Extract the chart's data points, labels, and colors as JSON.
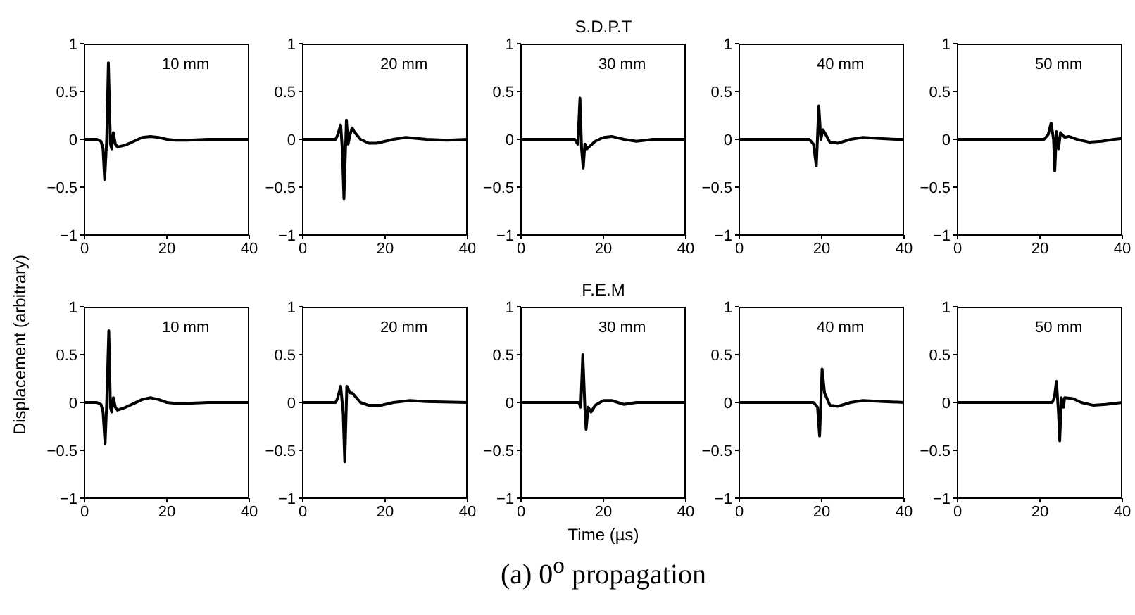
{
  "chart_data": [
    {
      "type": "line",
      "ylabel": "Displacement (arbitrary)",
      "annotations": [
        "10 mm"
      ],
      "color": "#000000",
      "xlim": [
        0,
        40
      ],
      "ylim": [
        -1,
        1
      ],
      "xticks": [
        0,
        20,
        40
      ],
      "yticks": [
        -1,
        -0.5,
        0,
        0.5,
        1
      ],
      "x": [
        0,
        3,
        4,
        4.5,
        4.9,
        5.4,
        5.8,
        6.3,
        6.6,
        7,
        7.5,
        8,
        10,
        12,
        14,
        16,
        18,
        20,
        22,
        25,
        30,
        40
      ],
      "values": [
        0,
        0,
        -0.02,
        -0.1,
        -0.42,
        0,
        0.8,
        -0.05,
        -0.1,
        0.07,
        -0.05,
        -0.08,
        -0.06,
        -0.02,
        0.02,
        0.03,
        0.02,
        0,
        -0.01,
        -0.01,
        0,
        0
      ]
    },
    {
      "type": "line",
      "annotations": [
        "20 mm"
      ],
      "color": "#000000",
      "xlim": [
        0,
        40
      ],
      "ylim": [
        -1,
        1
      ],
      "xticks": [
        0,
        20,
        40
      ],
      "yticks": [
        -1,
        -0.5,
        0,
        0.5,
        1
      ],
      "x": [
        0,
        8,
        8.5,
        9.2,
        9.6,
        10,
        10.6,
        11,
        11.5,
        12,
        12.5,
        14,
        16,
        18,
        20,
        22,
        25,
        30,
        35,
        40
      ],
      "values": [
        0,
        0,
        0.05,
        0.15,
        -0.1,
        -0.62,
        0.2,
        -0.05,
        0.05,
        0.12,
        0.08,
        0,
        -0.04,
        -0.04,
        -0.02,
        0,
        0.02,
        0,
        -0.01,
        0
      ]
    },
    {
      "type": "line",
      "title": "S.D.P.T",
      "annotations": [
        "30 mm"
      ],
      "color": "#000000",
      "xlim": [
        0,
        40
      ],
      "ylim": [
        -1,
        1
      ],
      "xticks": [
        0,
        20,
        40
      ],
      "yticks": [
        -1,
        -0.5,
        0,
        0.5,
        1
      ],
      "x": [
        0,
        13,
        13.8,
        14.3,
        14.7,
        15.1,
        15.5,
        16,
        16.5,
        18,
        20,
        22,
        25,
        28,
        32,
        40
      ],
      "values": [
        0,
        0,
        -0.05,
        0.43,
        -0.1,
        -0.3,
        -0.05,
        -0.1,
        -0.08,
        -0.02,
        0.02,
        0.03,
        0,
        -0.02,
        0,
        0
      ]
    },
    {
      "type": "line",
      "annotations": [
        "40 mm"
      ],
      "color": "#000000",
      "xlim": [
        0,
        40
      ],
      "ylim": [
        -1,
        1
      ],
      "xticks": [
        0,
        20,
        40
      ],
      "yticks": [
        -1,
        -0.5,
        0,
        0.5,
        1
      ],
      "x": [
        0,
        17,
        18,
        18.7,
        19.3,
        19.8,
        20.3,
        21,
        22,
        24,
        27,
        30,
        34,
        38,
        40
      ],
      "values": [
        0,
        0,
        -0.05,
        -0.28,
        0.35,
        0,
        0.1,
        0.05,
        -0.03,
        -0.04,
        0,
        0.02,
        0.01,
        0,
        0
      ]
    },
    {
      "type": "line",
      "annotations": [
        "50 mm"
      ],
      "color": "#000000",
      "xlim": [
        0,
        40
      ],
      "ylim": [
        -1,
        1
      ],
      "xticks": [
        0,
        20,
        40
      ],
      "yticks": [
        -1,
        -0.5,
        0,
        0.5,
        1
      ],
      "x": [
        0,
        21,
        22,
        22.7,
        23.3,
        23.6,
        24,
        24.5,
        25,
        26,
        27,
        29,
        32,
        35,
        38,
        40
      ],
      "values": [
        0,
        0,
        0.05,
        0.17,
        0,
        -0.33,
        0.08,
        -0.1,
        0.07,
        0.02,
        0.03,
        0,
        -0.03,
        -0.02,
        0,
        0.01
      ]
    },
    {
      "type": "line",
      "annotations": [
        "10 mm"
      ],
      "color": "#000000",
      "xlim": [
        0,
        40
      ],
      "ylim": [
        -1,
        1
      ],
      "xticks": [
        0,
        20,
        40
      ],
      "yticks": [
        -1,
        -0.5,
        0,
        0.5,
        1
      ],
      "x": [
        0,
        3,
        4,
        4.5,
        5,
        5.4,
        5.9,
        6.3,
        6.6,
        7,
        7.5,
        8,
        10,
        12,
        14,
        16,
        18,
        20,
        22,
        25,
        30,
        40
      ],
      "values": [
        0,
        0,
        -0.02,
        -0.1,
        -0.43,
        0,
        0.75,
        -0.05,
        -0.1,
        0.05,
        -0.05,
        -0.08,
        -0.05,
        -0.01,
        0.03,
        0.05,
        0.03,
        0,
        -0.01,
        -0.01,
        0,
        0
      ]
    },
    {
      "type": "line",
      "annotations": [
        "20 mm"
      ],
      "color": "#000000",
      "xlim": [
        0,
        40
      ],
      "ylim": [
        -1,
        1
      ],
      "xticks": [
        0,
        20,
        40
      ],
      "yticks": [
        -1,
        -0.5,
        0,
        0.5,
        1
      ],
      "x": [
        0,
        8,
        8.5,
        9.2,
        9.8,
        10.2,
        10.7,
        11.5,
        12,
        14,
        16,
        19,
        22,
        26,
        30,
        40
      ],
      "values": [
        0,
        0,
        0.05,
        0.17,
        -0.1,
        -0.62,
        0.17,
        0.1,
        0.1,
        0,
        -0.03,
        -0.03,
        0,
        0.02,
        0.01,
        0
      ]
    },
    {
      "type": "line",
      "title": "F.E.M",
      "xlabel": "Time (µs)",
      "annotations": [
        "30 mm",
        "(a) 0$^{o}$ propagation"
      ],
      "color": "#000000",
      "xlim": [
        0,
        40
      ],
      "ylim": [
        -1,
        1
      ],
      "xticks": [
        0,
        20,
        40
      ],
      "yticks": [
        -1,
        -0.5,
        0,
        0.5,
        1
      ],
      "x": [
        0,
        14,
        14.5,
        15,
        15.5,
        15.8,
        16.3,
        17,
        18,
        20,
        22,
        25,
        28,
        32,
        40
      ],
      "values": [
        0,
        0,
        -0.05,
        0.5,
        -0.05,
        -0.28,
        -0.05,
        -0.1,
        -0.03,
        0.02,
        0.02,
        -0.02,
        0,
        0,
        0
      ]
    },
    {
      "type": "line",
      "annotations": [
        "40 mm"
      ],
      "color": "#000000",
      "xlim": [
        0,
        40
      ],
      "ylim": [
        -1,
        1
      ],
      "xticks": [
        0,
        20,
        40
      ],
      "yticks": [
        -1,
        -0.5,
        0,
        0.5,
        1
      ],
      "x": [
        0,
        18,
        19,
        19.5,
        20.1,
        20.7,
        22,
        24,
        27,
        30,
        35,
        40
      ],
      "values": [
        0,
        0,
        -0.05,
        -0.35,
        0.35,
        0.1,
        -0.03,
        -0.04,
        0,
        0.02,
        0.01,
        0
      ]
    },
    {
      "type": "line",
      "annotations": [
        "50 mm"
      ],
      "color": "#000000",
      "xlim": [
        0,
        40
      ],
      "ylim": [
        -1,
        1
      ],
      "xticks": [
        0,
        20,
        40
      ],
      "yticks": [
        -1,
        -0.5,
        0,
        0.5,
        1
      ],
      "x": [
        0,
        23,
        23.5,
        24,
        24.5,
        24.8,
        25.2,
        25.7,
        26,
        28,
        30,
        33,
        36,
        40
      ],
      "values": [
        0,
        0,
        0.05,
        0.22,
        -0.1,
        -0.4,
        0.05,
        -0.05,
        0.05,
        0.04,
        0,
        -0.03,
        -0.02,
        0
      ]
    }
  ]
}
